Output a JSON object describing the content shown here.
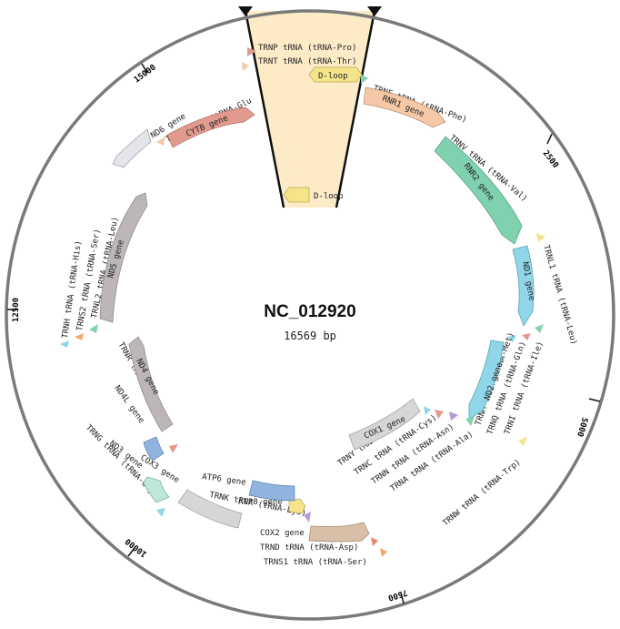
{
  "map": {
    "title": "NC_012920",
    "length": "16569 bp",
    "total_bp": 16569
  },
  "colors": {
    "ring": "#7a7a7a",
    "selection": "#fdebc8",
    "dloop": "#f6e48a",
    "rnr": "#f5c9a8",
    "rnr2": "#7fd1b0",
    "nd": "#8fd6e8",
    "cox": "#d6d6d6",
    "atp": "#8fb4e0",
    "cytb": "#e29a8e",
    "nd_gray": "#bdb6b6"
  },
  "ticks": [
    {
      "pos": 2500,
      "label": "2500"
    },
    {
      "pos": 5000,
      "label": "5000"
    },
    {
      "pos": 7500,
      "label": "7500"
    },
    {
      "pos": 10000,
      "label": "10000"
    },
    {
      "pos": 12500,
      "label": "12500"
    },
    {
      "pos": 15000,
      "label": "15000"
    }
  ],
  "labels": {
    "trnp": "TRNP tRNA (tRNA-Pro)",
    "trnt": "TRNT tRNA (tRNA-Thr)",
    "dloop_outer": "D-loop",
    "dloop_inner": "D-loop",
    "trnf": "TRNF tRNA (tRNA-Phe)",
    "rnr1": "RNR1 gene",
    "trnv": "TRNV tRNA (tRNA-Val)",
    "rnr2": "RNR2 gene",
    "trnl1": "TRNL1 tRNA (tRNA-Leu)",
    "nd1": "ND1 gene",
    "trni": "TRNI tRNA (tRNA-Ile)",
    "trnq": "TRNQ tRNA (tRNA-Gln)",
    "trnm": "TRNM tRNA (tRNA-Met)",
    "nd2": "ND2 gene",
    "trnw": "TRNW tRNA (tRNA-Trp)",
    "trna": "TRNA tRNA (tRNA-Ala)",
    "trnn": "TRNN tRNA (tRNA-Asn)",
    "trnc": "TRNC tRNA (tRNA-Cys)",
    "trny": "TRNY tRNA (tRNA-Tyr)",
    "cox1": "COX1 gene",
    "trns1": "TRNS1 tRNA (tRNA-Ser)",
    "trnd": "TRND tRNA (tRNA-Asp)",
    "cox2": "COX2 gene",
    "trnk": "TRNK tRNA (tRNA-Lys)",
    "atp8": "ATP8 gene",
    "atp6": "ATP6 gene",
    "cox3": "COX3 gene",
    "trng": "TRNG tRNA (tRNA-Gly)",
    "nd3": "ND3 gene",
    "trnr": "TRNR tRNA (tRNA-Arg)",
    "nd4l": "ND4L gene",
    "nd4": "ND4 gene",
    "trnh": "TRNH tRNA (tRNA-His)",
    "trns2": "TRNS2 tRNA (tRNA-Ser)",
    "trnl2": "TRNL2 tRNA (tRNA-Leu)",
    "nd5": "ND5 gene",
    "nd6": "ND6 gene",
    "trne": "TRNE tRNA (tRNA-Glu",
    "cytb": "CYTB gene"
  }
}
